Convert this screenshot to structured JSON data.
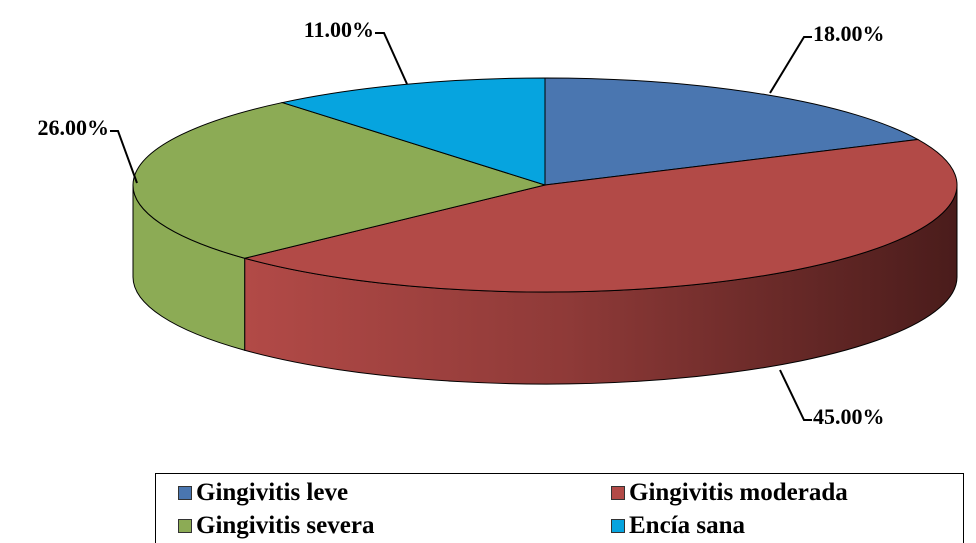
{
  "chart_data": {
    "type": "pie",
    "categories": [
      "Gingivitis leve",
      "Gingivitis moderada",
      "Gingivitis severa",
      "Encía sana"
    ],
    "values": [
      18.0,
      45.0,
      26.0,
      11.0
    ],
    "value_labels": [
      "18.00%",
      "45.00%",
      "26.00%",
      "11.00%"
    ],
    "colors": [
      "#4a76b0",
      "#b24a47",
      "#8cab55",
      "#06a4df"
    ],
    "style": "3d",
    "legend_position": "bottom"
  }
}
